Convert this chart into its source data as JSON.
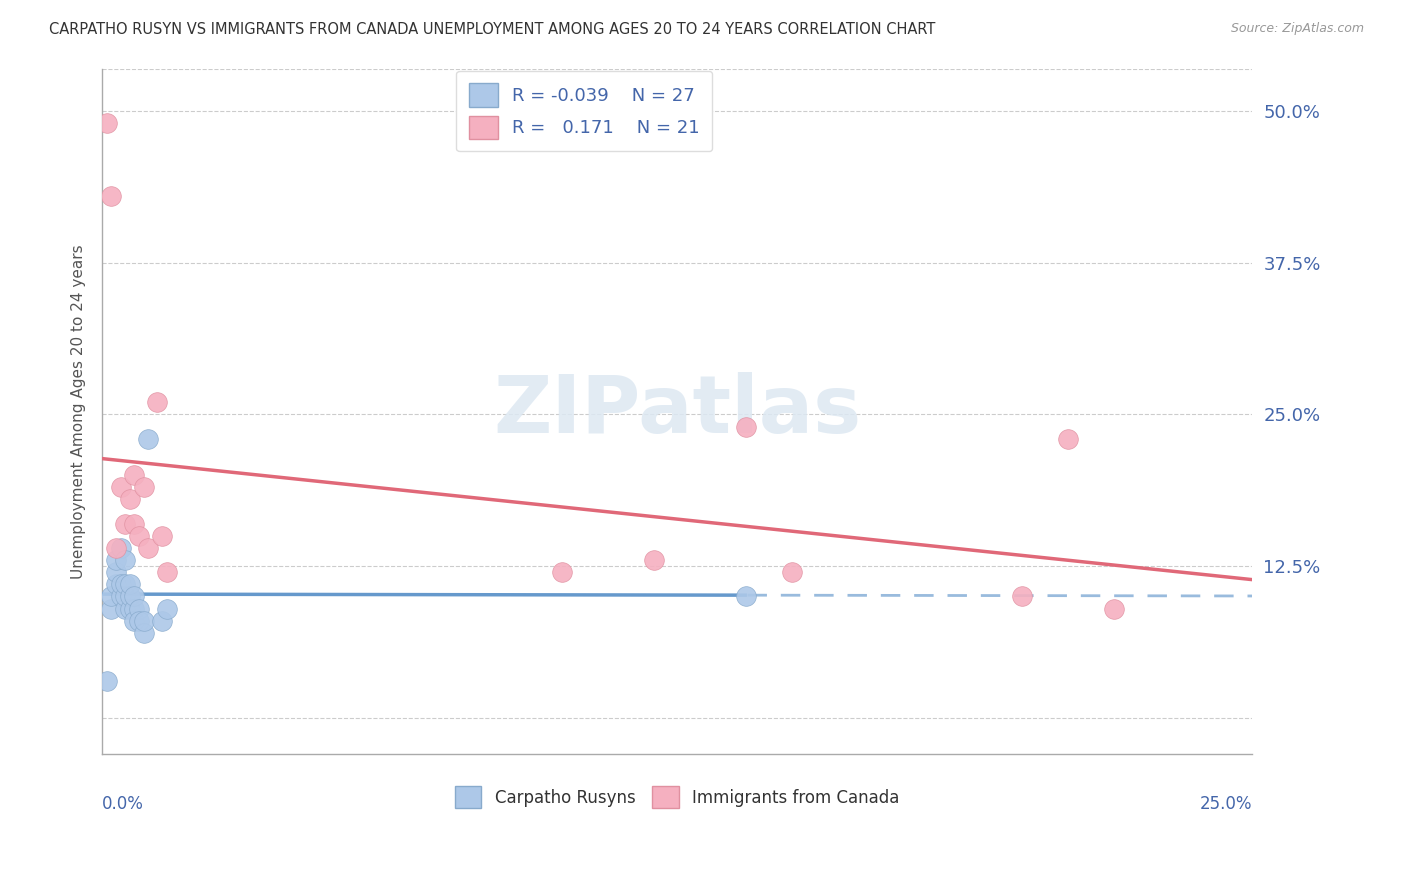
{
  "title": "CARPATHO RUSYN VS IMMIGRANTS FROM CANADA UNEMPLOYMENT AMONG AGES 20 TO 24 YEARS CORRELATION CHART",
  "source": "Source: ZipAtlas.com",
  "ylabel": "Unemployment Among Ages 20 to 24 years",
  "ytick_labels": [
    "",
    "12.5%",
    "25.0%",
    "37.5%",
    "50.0%"
  ],
  "ytick_values": [
    0,
    0.125,
    0.25,
    0.375,
    0.5
  ],
  "xlim": [
    0,
    0.25
  ],
  "ylim": [
    -0.03,
    0.535
  ],
  "color_blue": "#adc8e8",
  "color_pink": "#f5b0c0",
  "color_blue_line": "#6699cc",
  "color_pink_line": "#e06878",
  "color_text_blue": "#4466aa",
  "watermark_text": "ZIPatlas",
  "blue_x": [
    0.001,
    0.002,
    0.002,
    0.003,
    0.003,
    0.003,
    0.004,
    0.004,
    0.004,
    0.005,
    0.005,
    0.005,
    0.005,
    0.006,
    0.006,
    0.006,
    0.007,
    0.007,
    0.007,
    0.008,
    0.008,
    0.009,
    0.009,
    0.01,
    0.013,
    0.014,
    0.14
  ],
  "blue_y": [
    0.03,
    0.09,
    0.1,
    0.11,
    0.12,
    0.13,
    0.1,
    0.11,
    0.14,
    0.09,
    0.1,
    0.11,
    0.13,
    0.09,
    0.1,
    0.11,
    0.09,
    0.1,
    0.08,
    0.09,
    0.08,
    0.07,
    0.08,
    0.23,
    0.08,
    0.09,
    0.1
  ],
  "pink_x": [
    0.001,
    0.002,
    0.003,
    0.004,
    0.005,
    0.006,
    0.007,
    0.007,
    0.008,
    0.009,
    0.01,
    0.012,
    0.013,
    0.014,
    0.1,
    0.12,
    0.14,
    0.15,
    0.2,
    0.21,
    0.22
  ],
  "pink_y": [
    0.49,
    0.43,
    0.14,
    0.19,
    0.16,
    0.18,
    0.2,
    0.16,
    0.15,
    0.19,
    0.14,
    0.26,
    0.15,
    0.12,
    0.12,
    0.13,
    0.24,
    0.12,
    0.1,
    0.23,
    0.09
  ],
  "blue_line_solid_end": 0.14,
  "blue_line_dash_start": 0.14,
  "blue_line_end": 0.25,
  "pink_line_start": 0.0,
  "pink_line_end": 0.25
}
